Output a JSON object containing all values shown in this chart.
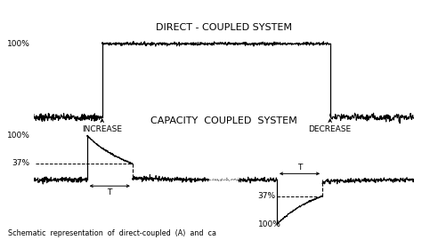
{
  "title_top": "DIRECT - COUPLED SYSTEM",
  "title_bottom": "CAPACITY  COUPLED  SYSTEM",
  "bg_color": "#ffffff",
  "line_color": "#000000",
  "noise_amp_low": 0.022,
  "noise_amp_high": 0.01,
  "caption": "Schematic  representation  of  direct-coupled  (A)  and  ca"
}
